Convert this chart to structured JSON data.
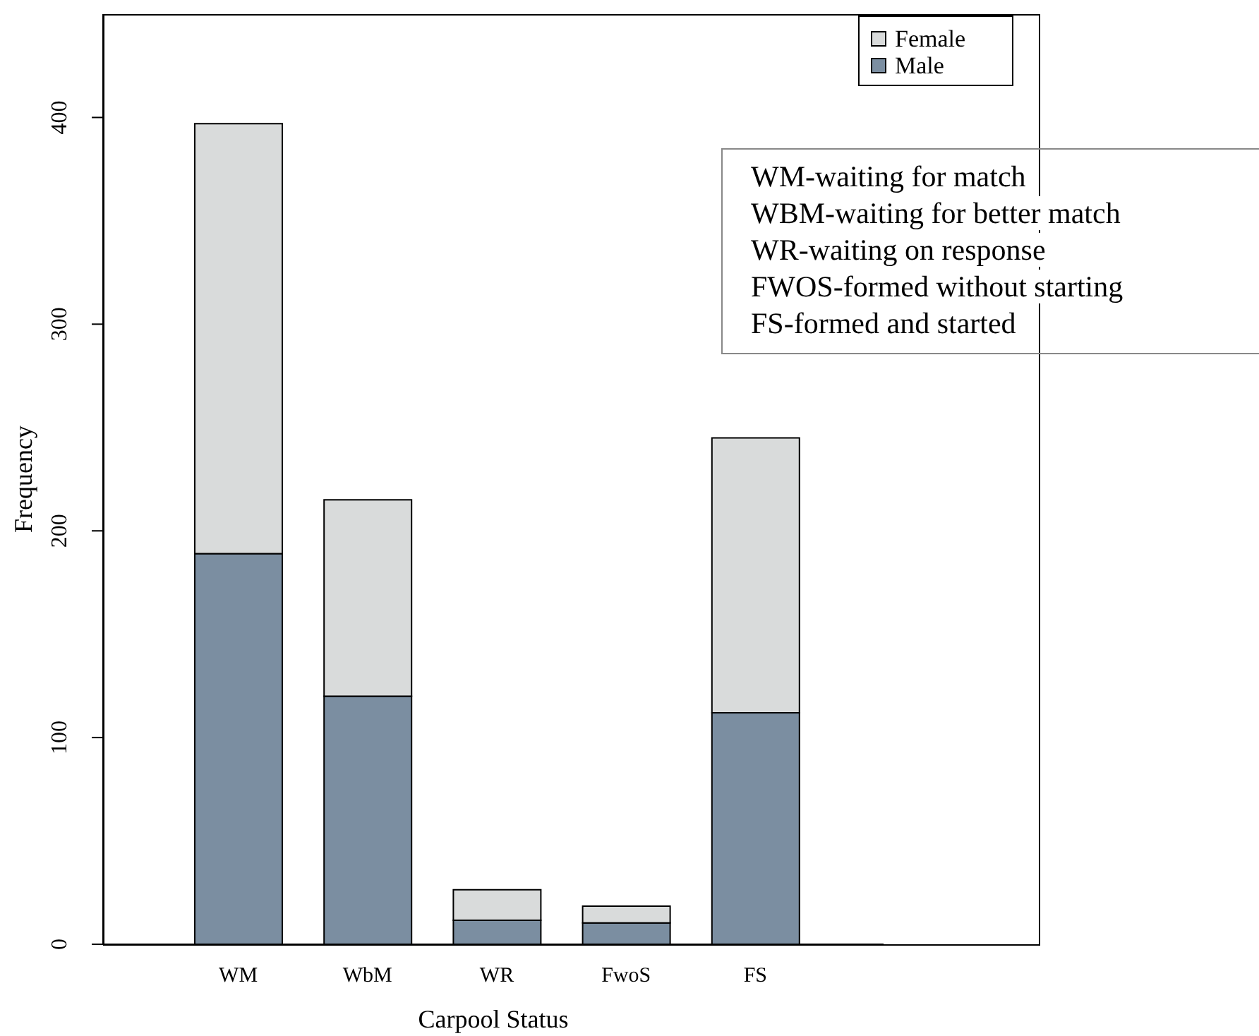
{
  "chart_data": {
    "type": "bar",
    "stacked": true,
    "xlabel": "Carpool Status",
    "ylabel": "Frequency",
    "categories": [
      "WM",
      "WbM",
      "WR",
      "FwoS",
      "FS"
    ],
    "series": [
      {
        "name": "Male",
        "color": "#7b8ea1",
        "values": [
          189,
          120,
          11.6,
          10.3,
          112
        ]
      },
      {
        "name": "Female",
        "color": "#d9dbdb",
        "values": [
          208,
          95,
          14.8,
          8.1,
          133
        ]
      }
    ],
    "ylim": [
      0,
      450
    ],
    "yticks": [
      0,
      100,
      200,
      300,
      400
    ],
    "legend": "top right",
    "annotations": [
      "WM-waiting for match",
      "WBM-waiting for better match",
      "WR-waiting on response",
      "FWOS-formed without starting",
      "FS-formed and started"
    ]
  }
}
